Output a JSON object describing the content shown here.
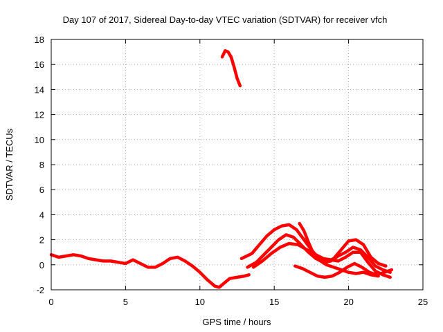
{
  "chart_data": {
    "type": "line",
    "title": "Day 107 of 2017, Sidereal Day-to-day VTEC variation (SDTVAR) for receiver vfch",
    "xlabel": "GPS time / hours",
    "ylabel": "SDTVAR / TECUs",
    "xlim": [
      0,
      25
    ],
    "ylim": [
      -2,
      18
    ],
    "xticks": [
      0,
      5,
      10,
      15,
      20,
      25
    ],
    "yticks": [
      -2,
      0,
      2,
      4,
      6,
      8,
      10,
      12,
      14,
      16,
      18
    ],
    "grid": true,
    "series_color": "#ff0000",
    "series": [
      {
        "name": "main-trace",
        "x": [
          0,
          0.5,
          1,
          1.5,
          2,
          2.5,
          3,
          3.5,
          4,
          4.5,
          5,
          5.5,
          6,
          6.5,
          7,
          7.5,
          8,
          8.5,
          9,
          9.5,
          10,
          10.5,
          11,
          11.3,
          11.7,
          12,
          12.5,
          13,
          13.3
        ],
        "y": [
          0.8,
          0.6,
          0.7,
          0.8,
          0.7,
          0.5,
          0.4,
          0.3,
          0.3,
          0.2,
          0.1,
          0.4,
          0.1,
          -0.2,
          -0.2,
          0.1,
          0.5,
          0.6,
          0.3,
          -0.1,
          -0.6,
          -1.2,
          -1.7,
          -1.8,
          -1.4,
          -1.1,
          -1.0,
          -0.9,
          -0.8
        ]
      },
      {
        "name": "high-segment",
        "x": [
          11.5,
          11.7,
          11.9,
          12.1,
          12.3,
          12.5,
          12.7
        ],
        "y": [
          16.6,
          17.1,
          17.0,
          16.6,
          15.8,
          14.9,
          14.3
        ]
      },
      {
        "name": "upper-arc",
        "x": [
          12.8,
          13.5,
          14,
          14.5,
          15,
          15.5,
          16,
          16.5,
          17,
          17.5,
          18,
          18.5,
          19,
          19.5,
          20,
          20.5,
          21,
          21.5,
          22,
          22.5
        ],
        "y": [
          0.5,
          0.9,
          1.6,
          2.3,
          2.8,
          3.1,
          3.2,
          2.8,
          2.0,
          1.2,
          0.5,
          0.2,
          0.5,
          1.2,
          1.9,
          2.0,
          1.6,
          0.6,
          0.1,
          -0.1
        ]
      },
      {
        "name": "middle-arc",
        "x": [
          13.2,
          13.8,
          14.3,
          14.8,
          15.3,
          15.8,
          16.3,
          16.8,
          17.3,
          17.8,
          18.3,
          18.8,
          19.3,
          19.8,
          20.3,
          20.8,
          21.3,
          21.8,
          22.3,
          22.8
        ],
        "y": [
          -0.2,
          0.2,
          0.8,
          1.4,
          2.0,
          2.4,
          2.2,
          1.6,
          1.0,
          0.5,
          0.2,
          0.3,
          0.7,
          1.0,
          1.4,
          1.2,
          0.6,
          -0.1,
          -0.4,
          -0.6
        ]
      },
      {
        "name": "lower-arc",
        "x": [
          13.6,
          14.2,
          14.8,
          15.4,
          16,
          16.6,
          17.2,
          17.8,
          18.3,
          18.8,
          19.3,
          19.8,
          20.3,
          20.8,
          21.3,
          21.8,
          22.3,
          22.8
        ],
        "y": [
          -0.2,
          0.3,
          0.9,
          1.4,
          1.7,
          1.6,
          1.2,
          0.8,
          0.5,
          0.4,
          0.3,
          0.6,
          1.0,
          1.0,
          0.2,
          -0.5,
          -0.8,
          -1.0
        ]
      },
      {
        "name": "late-arc",
        "x": [
          16.7,
          17.0,
          17.3,
          17.6,
          18.0,
          18.5,
          19.0,
          19.5,
          20.0,
          20.5,
          21.0,
          21.5,
          22.0
        ],
        "y": [
          3.3,
          2.7,
          1.8,
          1.0,
          0.4,
          0.0,
          -0.2,
          -0.4,
          -0.6,
          -0.7,
          -0.6,
          -0.8,
          -0.9
        ]
      },
      {
        "name": "dip-arc",
        "x": [
          16.4,
          16.9,
          17.4,
          17.9,
          18.4,
          18.9,
          19.4,
          19.9,
          20.4,
          20.9,
          21.4,
          21.9,
          22.4,
          22.9
        ],
        "y": [
          -0.1,
          -0.3,
          -0.6,
          -0.9,
          -1.0,
          -0.9,
          -0.6,
          -0.2,
          0.1,
          -0.2,
          -0.6,
          -0.8,
          -0.6,
          -0.4
        ]
      }
    ]
  }
}
